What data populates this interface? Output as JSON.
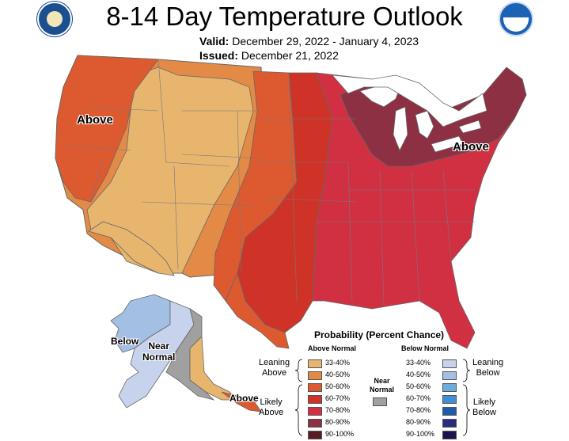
{
  "title": "8-14 Day Temperature Outlook",
  "valid_label": "Valid:",
  "valid_dates": "December 29, 2022 - January 4, 2023",
  "issued_label": "Issued:",
  "issued_date": "December 21, 2022",
  "logos": {
    "left": "doc-seal-icon",
    "right": "noaa-logo-icon"
  },
  "map_labels": {
    "above_west": "Above",
    "above_northeast": "Above",
    "below_alaska": "Below",
    "near_normal_alaska": "Near\nNormal",
    "above_alaska": "Above"
  },
  "legend": {
    "title": "Probability (Percent Chance)",
    "above_heading": "Above Normal",
    "below_heading": "Below Normal",
    "near_normal": "Near\nNormal",
    "leaning_above": "Leaning\nAbove",
    "likely_above": "Likely\nAbove",
    "leaning_below": "Leaning\nBelow",
    "likely_below": "Likely\nBelow",
    "above_bins": [
      {
        "label": "33-40%",
        "color": "#e8b56f"
      },
      {
        "label": "40-50%",
        "color": "#e38b46"
      },
      {
        "label": "50-60%",
        "color": "#dd5a30"
      },
      {
        "label": "60-70%",
        "color": "#cf3327"
      },
      {
        "label": "70-80%",
        "color": "#d13043"
      },
      {
        "label": "80-90%",
        "color": "#8e3043"
      },
      {
        "label": "90-100%",
        "color": "#5a1c22"
      }
    ],
    "below_bins": [
      {
        "label": "33-40%",
        "color": "#c7d3ec"
      },
      {
        "label": "40-50%",
        "color": "#a3c0e4"
      },
      {
        "label": "50-60%",
        "color": "#6baedd"
      },
      {
        "label": "60-70%",
        "color": "#3e8fd3"
      },
      {
        "label": "70-80%",
        "color": "#1d5ca8"
      },
      {
        "label": "80-90%",
        "color": "#2a2c7e"
      },
      {
        "label": "90-100%",
        "color": "#1a1450"
      }
    ],
    "near_normal_color": "#a0a0a0"
  }
}
